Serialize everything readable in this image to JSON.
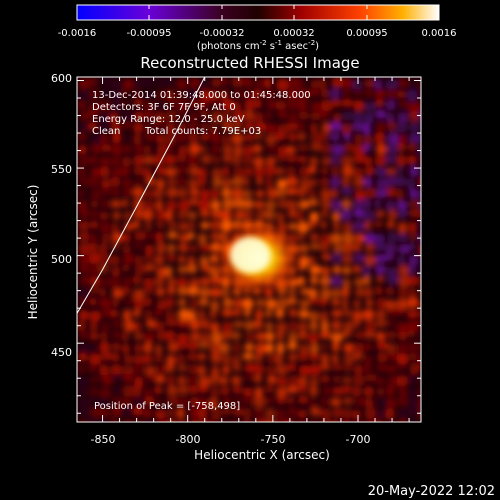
{
  "chart_data": {
    "type": "heatmap",
    "title": "Reconstructed RHESSI Image",
    "xlabel": "Heliocentric X (arcsec)",
    "ylabel": "Heliocentric Y (arcsec)",
    "xlim": [
      -865,
      -663
    ],
    "ylim": [
      405,
      602
    ],
    "x_ticks": [
      -850,
      -800,
      -750,
      -700
    ],
    "y_ticks": [
      450,
      500,
      550,
      600
    ],
    "colorbar": {
      "ticks": [
        "-0.0016",
        "-0.00095",
        "-0.00032",
        "0.00032",
        "0.00095",
        "0.0016"
      ],
      "units": "(photons cm",
      "units_exp1": "-2",
      "units_mid": " s",
      "units_exp2": "-1",
      "units_mid2": " asec",
      "units_exp3": "-2",
      "units_end": ")",
      "range": [
        -0.0016,
        0.0016
      ]
    },
    "annotations": {
      "time_range": "13-Dec-2014 01:39:48.000 to 01:45:48.000",
      "detectors": "Detectors: 3F 6F 7F 9F, Att 0",
      "energy": "Energy Range: 12.0 - 25.0 keV",
      "method": "Clean",
      "counts": "Total counts: 7.79E+03",
      "peak": "Position of Peak = [-758,498]"
    },
    "peak": {
      "x": -758,
      "y": 498
    },
    "limb_arc": [
      [
        -865,
        467
      ],
      [
        -850,
        492
      ],
      [
        -830,
        528
      ],
      [
        -808,
        568
      ],
      [
        -790,
        602
      ]
    ]
  },
  "footer": {
    "date": "20-May-2022 12:02"
  }
}
